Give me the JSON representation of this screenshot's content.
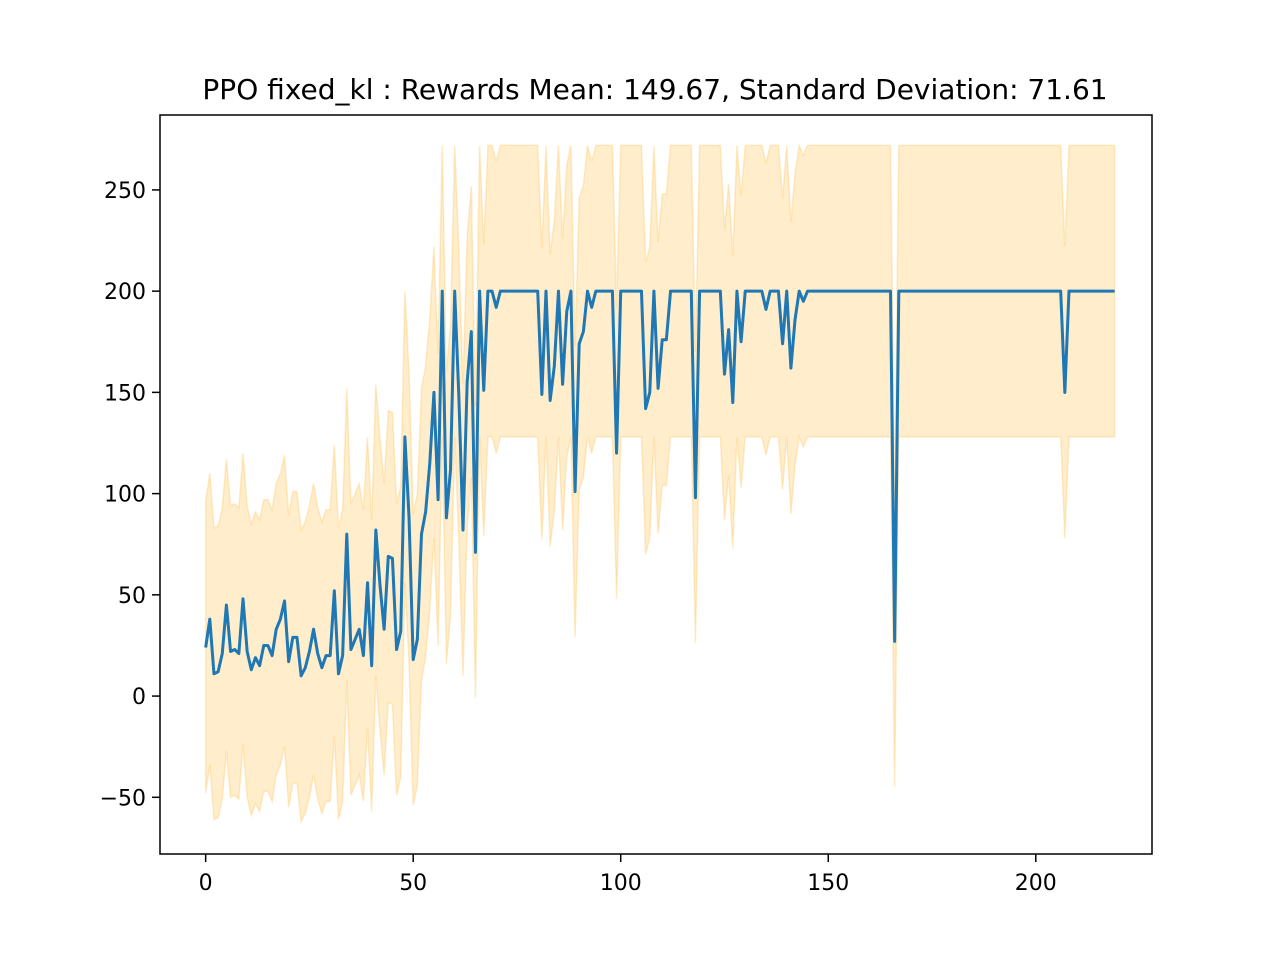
{
  "chart_data": {
    "type": "line",
    "title": "PPO fixed_kl : Rewards Mean: 149.67, Standard Deviation: 71.61",
    "xlabel": "",
    "ylabel": "",
    "xlim": [
      -11,
      228
    ],
    "ylim": [
      -78,
      287
    ],
    "x_ticks": [
      0,
      50,
      100,
      150,
      200
    ],
    "x_tick_labels": [
      "0",
      "50",
      "100",
      "150",
      "200"
    ],
    "y_ticks": [
      -50,
      0,
      50,
      100,
      150,
      200,
      250
    ],
    "y_tick_labels": [
      "−50",
      "0",
      "50",
      "100",
      "150",
      "200",
      "250"
    ],
    "grid": false,
    "legend": "none",
    "line_color": "#1f77b4",
    "band_color": "#ffa500",
    "band_opacity": 0.2,
    "series": [
      {
        "values": [
          24,
          38,
          11,
          12,
          21,
          45,
          22,
          23,
          21,
          48,
          22,
          13,
          19,
          15,
          25,
          25,
          20,
          33,
          38,
          47,
          17,
          29,
          29,
          10,
          14,
          22,
          33,
          21,
          14,
          20,
          20,
          52,
          11,
          20,
          80,
          23,
          28,
          33,
          20,
          56,
          15,
          82,
          55,
          33,
          69,
          68,
          23,
          32,
          128,
          88,
          18,
          28,
          80,
          91,
          115,
          150,
          97,
          200,
          88,
          112,
          200,
          148,
          82,
          155,
          180,
          71,
          200,
          151,
          200,
          200,
          192,
          200,
          200,
          200,
          200,
          200,
          200,
          200,
          200,
          200,
          200,
          149,
          200,
          146,
          163,
          200,
          154,
          190,
          200,
          101,
          174,
          180,
          200,
          192,
          200,
          200,
          200,
          200,
          200,
          120,
          200,
          200,
          200,
          200,
          200,
          200,
          142,
          150,
          200,
          152,
          176,
          176,
          200,
          200,
          200,
          200,
          200,
          200,
          98,
          200,
          200,
          200,
          200,
          200,
          200,
          159,
          181,
          145,
          200,
          175,
          200,
          200,
          200,
          200,
          200,
          191,
          200,
          200,
          200,
          174,
          200,
          162,
          186,
          200,
          195,
          200,
          200,
          200,
          200,
          200,
          200,
          200,
          200,
          200,
          200,
          200,
          200,
          200,
          200,
          200,
          200,
          200,
          200,
          200,
          200,
          200,
          27,
          200,
          200,
          200,
          200,
          200,
          200,
          200,
          200,
          200,
          200,
          200,
          200,
          200,
          200,
          200,
          200,
          200,
          200,
          200,
          200,
          200,
          200,
          200,
          200,
          200,
          200,
          200,
          200,
          200,
          200,
          200,
          200,
          200,
          200,
          200,
          200,
          200,
          200,
          200,
          200,
          150,
          200,
          200,
          200,
          200,
          200,
          200,
          200,
          200,
          200,
          200,
          200,
          200
        ],
        "band_low": [
          -48,
          -34,
          -61,
          -60,
          -51,
          -27,
          -50,
          -49,
          -51,
          -24,
          -50,
          -59,
          -53,
          -57,
          -47,
          -47,
          -52,
          -39,
          -34,
          -25,
          -55,
          -43,
          -43,
          -62,
          -58,
          -50,
          -39,
          -51,
          -58,
          -52,
          -52,
          -20,
          -61,
          -52,
          8,
          -49,
          -44,
          -39,
          -52,
          -16,
          -57,
          10,
          -17,
          -39,
          -3,
          -4,
          -49,
          -40,
          56,
          16,
          -54,
          -44,
          8,
          19,
          43,
          78,
          25,
          128,
          16,
          40,
          128,
          76,
          10,
          83,
          108,
          -1,
          128,
          79,
          128,
          128,
          120,
          128,
          128,
          128,
          128,
          128,
          128,
          128,
          128,
          128,
          128,
          77,
          128,
          74,
          91,
          128,
          82,
          118,
          128,
          29,
          102,
          108,
          128,
          120,
          128,
          128,
          128,
          128,
          128,
          48,
          128,
          128,
          128,
          128,
          128,
          128,
          70,
          78,
          128,
          80,
          104,
          104,
          128,
          128,
          128,
          128,
          128,
          128,
          26,
          128,
          128,
          128,
          128,
          128,
          128,
          87,
          109,
          73,
          128,
          103,
          128,
          128,
          128,
          128,
          128,
          119,
          128,
          128,
          128,
          102,
          128,
          90,
          114,
          128,
          123,
          128,
          128,
          128,
          128,
          128,
          128,
          128,
          128,
          128,
          128,
          128,
          128,
          128,
          128,
          128,
          128,
          128,
          128,
          128,
          128,
          128,
          -45,
          128,
          128,
          128,
          128,
          128,
          128,
          128,
          128,
          128,
          128,
          128,
          128,
          128,
          128,
          128,
          128,
          128,
          128,
          128,
          128,
          128,
          128,
          128,
          128,
          128,
          128,
          128,
          128,
          128,
          128,
          128,
          128,
          128,
          128,
          128,
          128,
          128,
          128,
          128,
          128,
          78,
          128,
          128,
          128,
          128,
          128,
          128,
          128,
          128,
          128,
          128,
          128,
          128
        ],
        "band_high": [
          96,
          110,
          83,
          84,
          93,
          117,
          94,
          95,
          93,
          120,
          94,
          85,
          91,
          87,
          97,
          97,
          92,
          105,
          110,
          119,
          89,
          101,
          101,
          82,
          86,
          94,
          105,
          93,
          86,
          92,
          92,
          124,
          83,
          92,
          152,
          95,
          100,
          105,
          92,
          128,
          87,
          154,
          127,
          105,
          141,
          140,
          95,
          104,
          200,
          160,
          90,
          100,
          152,
          163,
          187,
          222,
          169,
          272,
          160,
          184,
          272,
          220,
          154,
          227,
          252,
          143,
          272,
          223,
          272,
          272,
          264,
          272,
          272,
          272,
          272,
          272,
          272,
          272,
          272,
          272,
          272,
          221,
          272,
          218,
          235,
          272,
          226,
          262,
          272,
          173,
          246,
          252,
          272,
          264,
          272,
          272,
          272,
          272,
          272,
          192,
          272,
          272,
          272,
          272,
          272,
          272,
          214,
          222,
          272,
          224,
          248,
          248,
          272,
          272,
          272,
          272,
          272,
          272,
          170,
          272,
          272,
          272,
          272,
          272,
          272,
          231,
          253,
          217,
          272,
          247,
          272,
          272,
          272,
          272,
          272,
          263,
          272,
          272,
          272,
          246,
          272,
          234,
          258,
          272,
          267,
          272,
          272,
          272,
          272,
          272,
          272,
          272,
          272,
          272,
          272,
          272,
          272,
          272,
          272,
          272,
          272,
          272,
          272,
          272,
          272,
          272,
          99,
          272,
          272,
          272,
          272,
          272,
          272,
          272,
          272,
          272,
          272,
          272,
          272,
          272,
          272,
          272,
          272,
          272,
          272,
          272,
          272,
          272,
          272,
          272,
          272,
          272,
          272,
          272,
          272,
          272,
          272,
          272,
          272,
          272,
          272,
          272,
          272,
          272,
          272,
          272,
          272,
          222,
          272,
          272,
          272,
          272,
          272,
          272,
          272,
          272,
          272,
          272,
          272,
          272
        ]
      }
    ]
  }
}
